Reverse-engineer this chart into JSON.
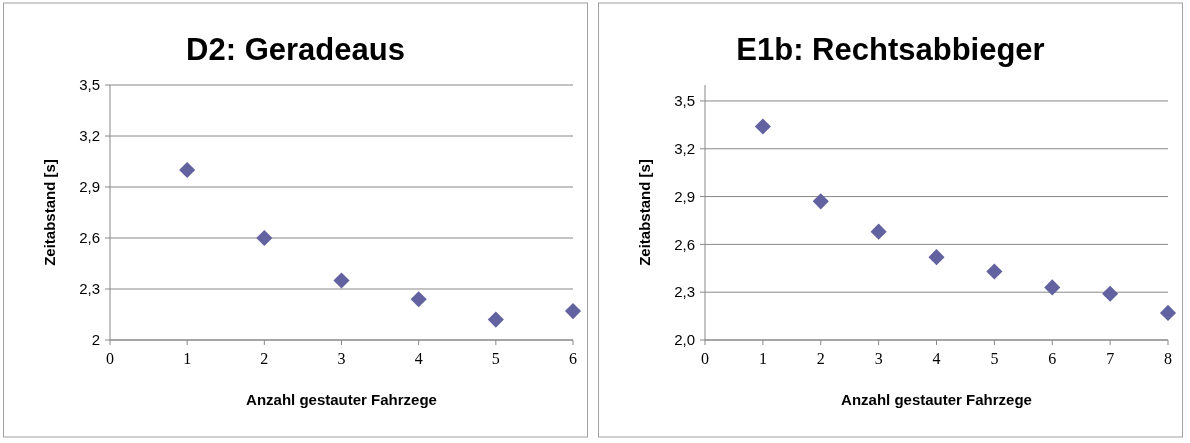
{
  "chart_data": [
    {
      "type": "scatter",
      "title": "D2: Geradeaus",
      "xlabel": "Anzahl gestauter Fahrzege",
      "ylabel": "Zeitabstand [s]",
      "x": [
        1,
        2,
        3,
        4,
        5,
        6
      ],
      "series": [
        {
          "color": "#6262a0",
          "values": [
            3.0,
            2.6,
            2.35,
            2.24,
            2.12,
            2.17
          ]
        }
      ],
      "xlim": [
        0,
        6
      ],
      "xticks": [
        0,
        1,
        2,
        3,
        4,
        5,
        6
      ],
      "ylim": [
        2,
        3.5
      ],
      "yticks": [
        2,
        {
          "value": 2.3,
          "label": "2,3"
        },
        {
          "value": 2.6,
          "label": "2,6"
        },
        {
          "value": 2.9,
          "label": "2,9"
        },
        {
          "value": 3.2,
          "label": "3,2"
        },
        {
          "value": 3.5,
          "label": "3,5"
        }
      ],
      "grid": "y",
      "marker": "diamond"
    },
    {
      "type": "scatter",
      "title": "E1b: Rechtsabbieger",
      "xlabel": "Anzahl gestauter Fahrzege",
      "ylabel": "Zeitabstand [s]",
      "x": [
        1,
        2,
        3,
        4,
        5,
        6,
        7,
        8
      ],
      "series": [
        {
          "color": "#6262a0",
          "values": [
            3.34,
            2.87,
            2.68,
            2.52,
            2.43,
            2.33,
            2.29,
            2.17
          ]
        }
      ],
      "xlim": [
        0,
        8
      ],
      "xticks": [
        0,
        1,
        2,
        3,
        4,
        5,
        6,
        7,
        8
      ],
      "ylim": [
        2,
        3.6
      ],
      "yticks": [
        {
          "value": 2,
          "label": "2,0"
        },
        {
          "value": 2.3,
          "label": "2,3"
        },
        {
          "value": 2.6,
          "label": "2,6"
        },
        {
          "value": 2.9,
          "label": "2,9"
        },
        {
          "value": 3.2,
          "label": "3,2"
        },
        {
          "value": 3.5,
          "label": "3,5"
        }
      ],
      "grid": "y",
      "marker": "diamond"
    }
  ]
}
